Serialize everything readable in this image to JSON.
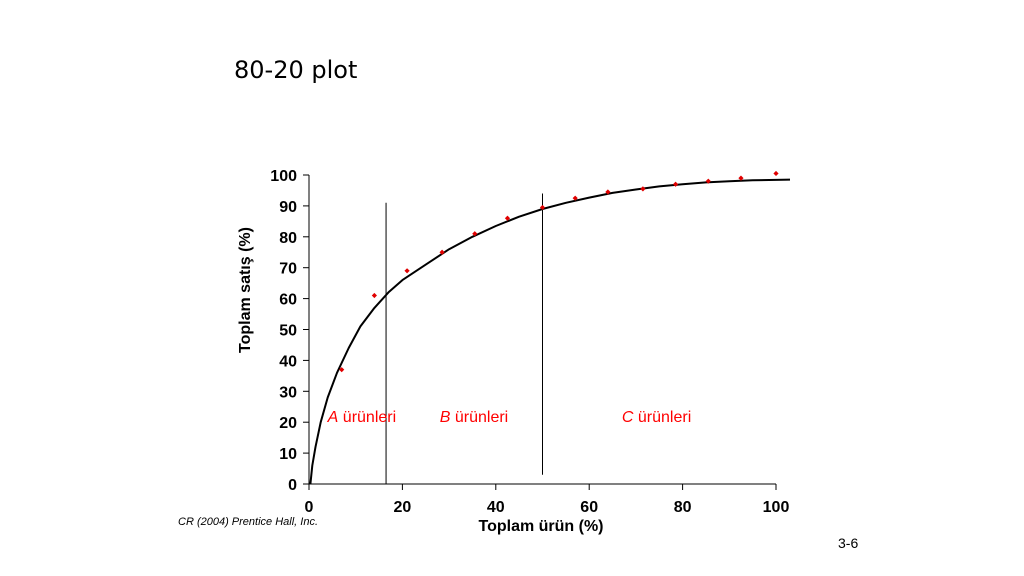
{
  "slide": {
    "title": "80-20 plot",
    "credit": "CR (2004) Prentice Hall, Inc.",
    "page_number": "3-6"
  },
  "chart_data": {
    "type": "scatter",
    "title": "",
    "xlabel": "Toplam ürün (%)",
    "ylabel": "Toplam satış (%)",
    "xlim": [
      0,
      100
    ],
    "ylim": [
      0,
      100
    ],
    "x_ticks": [
      0,
      20,
      40,
      60,
      80,
      100
    ],
    "y_ticks": [
      0,
      10,
      20,
      30,
      40,
      50,
      60,
      70,
      80,
      90,
      100
    ],
    "grid": false,
    "points": [
      {
        "x": 7,
        "y": 37
      },
      {
        "x": 14,
        "y": 61
      },
      {
        "x": 21,
        "y": 69
      },
      {
        "x": 28.5,
        "y": 75
      },
      {
        "x": 35.5,
        "y": 81
      },
      {
        "x": 42.5,
        "y": 86
      },
      {
        "x": 50,
        "y": 89.5
      },
      {
        "x": 57,
        "y": 92.5
      },
      {
        "x": 64,
        "y": 94.5
      },
      {
        "x": 71.5,
        "y": 95.5
      },
      {
        "x": 78.5,
        "y": 97
      },
      {
        "x": 85.5,
        "y": 98
      },
      {
        "x": 92.5,
        "y": 99
      },
      {
        "x": 100,
        "y": 100.5
      }
    ],
    "fitted_curve": [
      [
        0.3,
        0
      ],
      [
        0.7,
        6
      ],
      [
        1.4,
        12
      ],
      [
        2.5,
        20
      ],
      [
        4,
        28
      ],
      [
        6,
        36
      ],
      [
        8.5,
        44
      ],
      [
        11,
        51
      ],
      [
        14,
        57
      ],
      [
        17,
        62
      ],
      [
        20,
        66
      ],
      [
        25,
        71
      ],
      [
        30,
        76
      ],
      [
        35,
        80
      ],
      [
        40,
        83.5
      ],
      [
        45,
        86.5
      ],
      [
        50,
        89
      ],
      [
        55,
        91
      ],
      [
        60,
        92.7
      ],
      [
        65,
        94.2
      ],
      [
        70,
        95.3
      ],
      [
        75,
        96.3
      ],
      [
        80,
        97
      ],
      [
        85,
        97.6
      ],
      [
        90,
        98
      ],
      [
        95,
        98.3
      ],
      [
        100,
        98.4
      ],
      [
        103,
        98.5
      ]
    ],
    "point_color": "#e00000",
    "curve_color": "#000000",
    "region_dividers": [
      {
        "x": 16.5,
        "y_from": 0,
        "y_to": 91
      },
      {
        "x": 50,
        "y_from": 3,
        "y_to": 94
      }
    ],
    "regions": [
      {
        "letter": "A",
        "label": " ürünleri",
        "x": 4,
        "y": 22
      },
      {
        "letter": "B",
        "label": " ürünleri",
        "x": 28,
        "y": 22
      },
      {
        "letter": "C",
        "label": " ürünleri",
        "x": 67,
        "y": 22
      }
    ],
    "region_label_color": "#ff0000"
  }
}
